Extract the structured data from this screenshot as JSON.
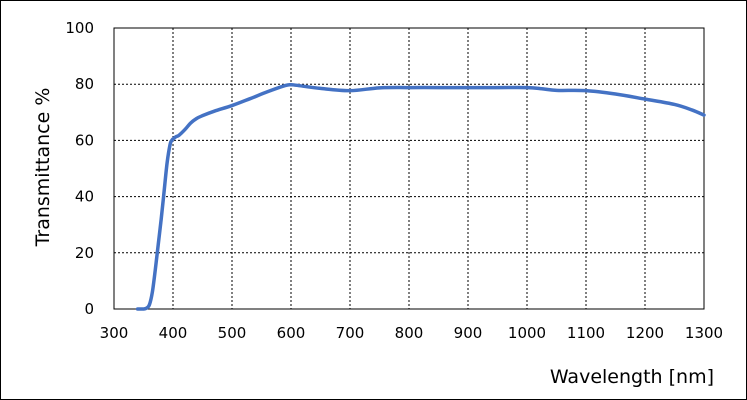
{
  "chart_data": {
    "type": "line",
    "title": "",
    "xlabel": "Wavelength [nm]",
    "ylabel": "Transmittance %",
    "xlim": [
      300,
      1300
    ],
    "ylim": [
      0,
      100
    ],
    "xticks": [
      300,
      400,
      500,
      600,
      700,
      800,
      900,
      1000,
      1100,
      1200,
      1300
    ],
    "yticks": [
      0,
      20,
      40,
      60,
      80,
      100
    ],
    "grid": true,
    "grid_style": "dotted",
    "series": [
      {
        "color": "#4472C4",
        "x": [
          340,
          350,
          355,
          360,
          365,
          370,
          375,
          380,
          385,
          390,
          395,
          398,
          400,
          405,
          410,
          420,
          430,
          440,
          450,
          470,
          500,
          530,
          560,
          590,
          600,
          610,
          650,
          700,
          750,
          800,
          850,
          900,
          950,
          1000,
          1025,
          1050,
          1100,
          1150,
          1200,
          1250,
          1280,
          1300
        ],
        "y": [
          0,
          0,
          0.3,
          1.5,
          6,
          14,
          23,
          32,
          42,
          52,
          58.5,
          60,
          60.5,
          61.3,
          61.8,
          63.8,
          66.2,
          67.8,
          68.8,
          70.4,
          72.4,
          74.8,
          77.3,
          79.5,
          79.8,
          79.6,
          78.5,
          77.7,
          78.7,
          78.8,
          78.8,
          78.8,
          78.8,
          78.8,
          78.4,
          77.8,
          77.7,
          76.5,
          74.7,
          72.8,
          70.8,
          69
        ]
      }
    ]
  }
}
